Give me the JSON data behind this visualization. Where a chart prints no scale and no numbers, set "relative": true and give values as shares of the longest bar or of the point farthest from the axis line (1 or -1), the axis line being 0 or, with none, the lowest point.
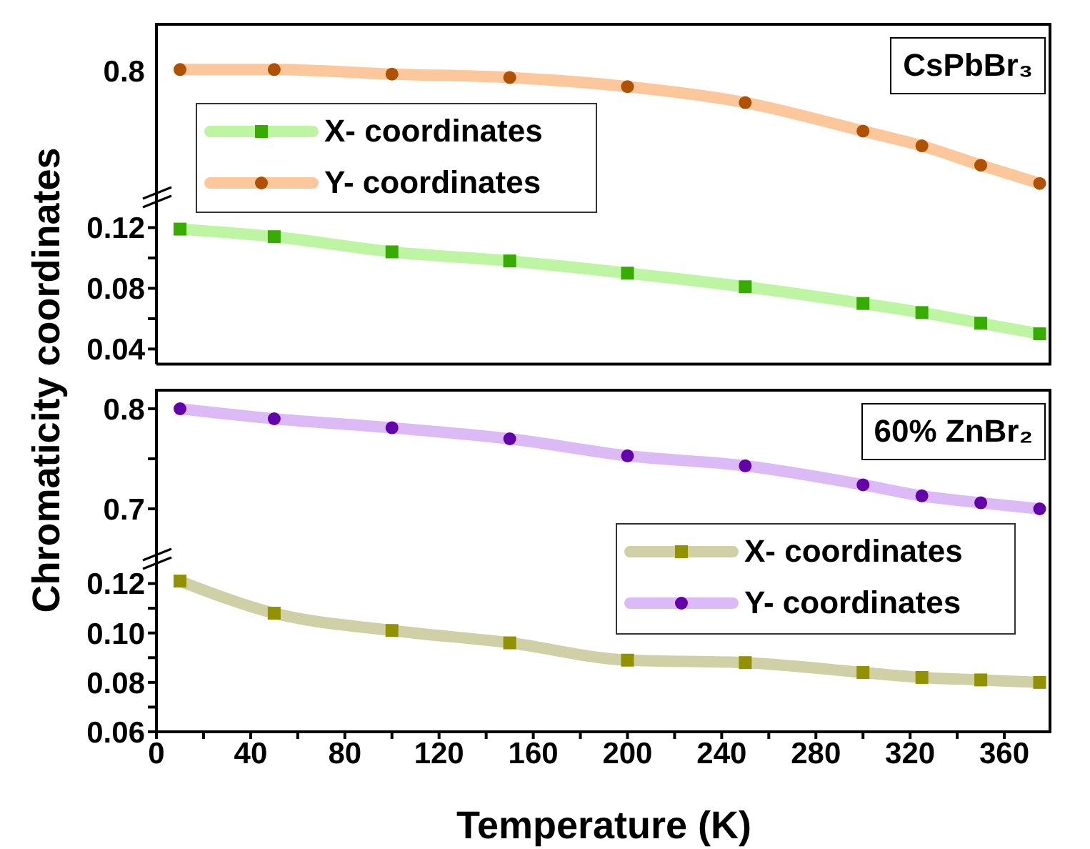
{
  "chart_data": [
    {
      "type": "line",
      "annotations": [
        "CsPbBr₃",
        "0.8"
      ],
      "ylabel": "Chromaticity coordinates",
      "x": [
        10,
        50,
        100,
        150,
        200,
        250,
        300,
        325,
        350,
        375
      ],
      "xlim": [
        0,
        380
      ],
      "xticks": [
        0,
        40,
        80,
        120,
        160,
        200,
        240,
        280,
        320,
        360
      ],
      "relative": true,
      "tick_labels": "y",
      "legend": "left",
      "grid": false,
      "series": [
        {
          "name": "Y- coordinates",
          "color": "#fcc79a",
          "marker": "circle",
          "values": [
            1,
            1,
            0.96,
            0.93,
            0.85,
            0.71,
            0.46,
            0.33,
            0.16,
            0
          ]
        }
      ]
    },
    {
      "type": "line",
      "x": [
        10,
        50,
        100,
        150,
        200,
        250,
        300,
        325,
        350,
        375
      ],
      "xlim": [
        0,
        380
      ],
      "xticks": [
        0,
        40,
        80,
        120,
        160,
        200,
        240,
        280,
        320,
        360
      ],
      "ylim": [
        0.03,
        0.14
      ],
      "yticks": [
        0.04,
        {
          "value": 0.06,
          "label": null
        },
        0.08,
        {
          "value": 0.1,
          "label": null
        },
        0.12
      ],
      "tick_labels": "y",
      "legend": "left",
      "grid": false,
      "series": [
        {
          "name": "X- coordinates",
          "color": "#bdf5a3",
          "marker": "square",
          "values": [
            0.119,
            0.114,
            0.104,
            0.098,
            0.09,
            0.081,
            0.07,
            0.064,
            0.057,
            0.05
          ]
        }
      ]
    },
    {
      "type": "line",
      "annotations": [
        "60% ZnBr₂"
      ],
      "x": [
        10,
        50,
        100,
        150,
        200,
        250,
        300,
        325,
        350,
        375
      ],
      "xlim": [
        0,
        380
      ],
      "xticks": [
        0,
        40,
        80,
        120,
        160,
        200,
        240,
        280,
        320,
        360
      ],
      "ylim": [
        0.65,
        0.82
      ],
      "yticks": [
        0.7,
        {
          "value": 0.75,
          "label": null
        },
        0.8
      ],
      "tick_labels": "y",
      "legend": "right",
      "grid": false,
      "series": [
        {
          "name": "Y- coordinates",
          "color": "#dcbaf5",
          "marker": "circle",
          "values": [
            0.8,
            0.79,
            0.781,
            0.77,
            0.753,
            0.743,
            0.724,
            0.713,
            0.706,
            0.7
          ]
        }
      ]
    },
    {
      "type": "line",
      "xlabel": "Temperature (K)",
      "x": [
        10,
        50,
        100,
        150,
        200,
        250,
        300,
        325,
        350,
        375
      ],
      "xlim": [
        0,
        380
      ],
      "xticks": [
        0,
        {
          "value": 20,
          "label": null
        },
        40,
        {
          "value": 60,
          "label": null
        },
        80,
        {
          "value": 100,
          "label": null
        },
        120,
        {
          "value": 140,
          "label": null
        },
        160,
        {
          "value": 180,
          "label": null
        },
        200,
        {
          "value": 220,
          "label": null
        },
        240,
        {
          "value": 260,
          "label": null
        },
        280,
        {
          "value": 300,
          "label": null
        },
        320,
        {
          "value": 340,
          "label": null
        },
        360
      ],
      "ylim": [
        0.06,
        0.13
      ],
      "yticks": [
        0.06,
        {
          "value": 0.07,
          "label": null
        },
        0.08,
        {
          "value": 0.09,
          "label": null
        },
        {
          "value": 0.1,
          "label": "0.10"
        },
        {
          "value": 0.11,
          "label": null
        },
        0.12
      ],
      "legend": "right",
      "grid": false,
      "series": [
        {
          "name": "X- coordinates",
          "color": "#d0d0a6",
          "marker": "square",
          "values": [
            0.121,
            0.108,
            0.101,
            0.096,
            0.089,
            0.088,
            0.084,
            0.082,
            0.081,
            0.08
          ]
        }
      ]
    }
  ]
}
